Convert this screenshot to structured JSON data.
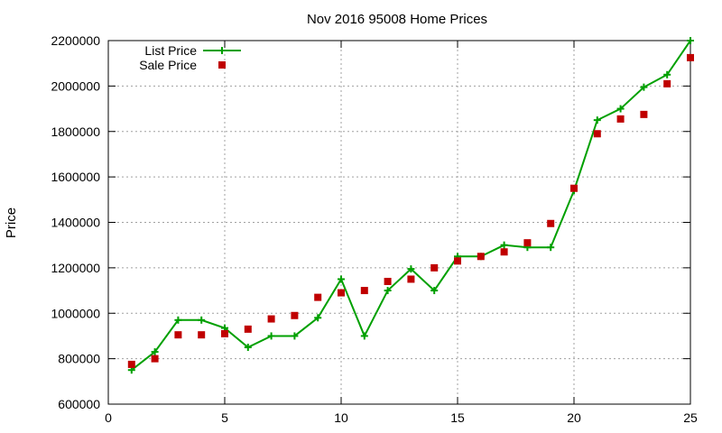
{
  "chart_data": {
    "type": "line",
    "title": "Nov 2016 95008 Home Prices",
    "xlabel": "",
    "ylabel": "Price",
    "xlim": [
      0,
      25
    ],
    "ylim": [
      600000,
      2200000
    ],
    "x_ticks": [
      0,
      5,
      10,
      15,
      20,
      25
    ],
    "y_ticks": [
      600000,
      800000,
      1000000,
      1200000,
      1400000,
      1600000,
      1800000,
      2000000,
      2200000
    ],
    "grid": true,
    "legend_position": "top-left",
    "series": [
      {
        "name": "List Price",
        "style": "line+cross",
        "color": "#00a000",
        "x": [
          1,
          2,
          3,
          4,
          5,
          6,
          7,
          8,
          9,
          10,
          11,
          12,
          13,
          14,
          15,
          16,
          17,
          18,
          19,
          20,
          21,
          22,
          23,
          24,
          25
        ],
        "values": [
          750000,
          830000,
          970000,
          970000,
          935000,
          850000,
          900000,
          900000,
          980000,
          1150000,
          900000,
          1100000,
          1195000,
          1100000,
          1250000,
          1250000,
          1300000,
          1290000,
          1290000,
          1540000,
          1850000,
          1900000,
          1995000,
          2050000,
          2200000
        ]
      },
      {
        "name": "Sale Price",
        "style": "square",
        "color": "#c00000",
        "x": [
          1,
          2,
          3,
          4,
          5,
          6,
          7,
          8,
          9,
          10,
          11,
          12,
          13,
          14,
          15,
          16,
          17,
          18,
          19,
          20,
          21,
          22,
          23,
          24,
          25
        ],
        "values": [
          775000,
          800000,
          905000,
          905000,
          910000,
          930000,
          975000,
          990000,
          1070000,
          1090000,
          1100000,
          1140000,
          1150000,
          1200000,
          1230000,
          1250000,
          1270000,
          1310000,
          1395000,
          1550000,
          1790000,
          1855000,
          1875000,
          2010000,
          2125000
        ]
      }
    ]
  }
}
